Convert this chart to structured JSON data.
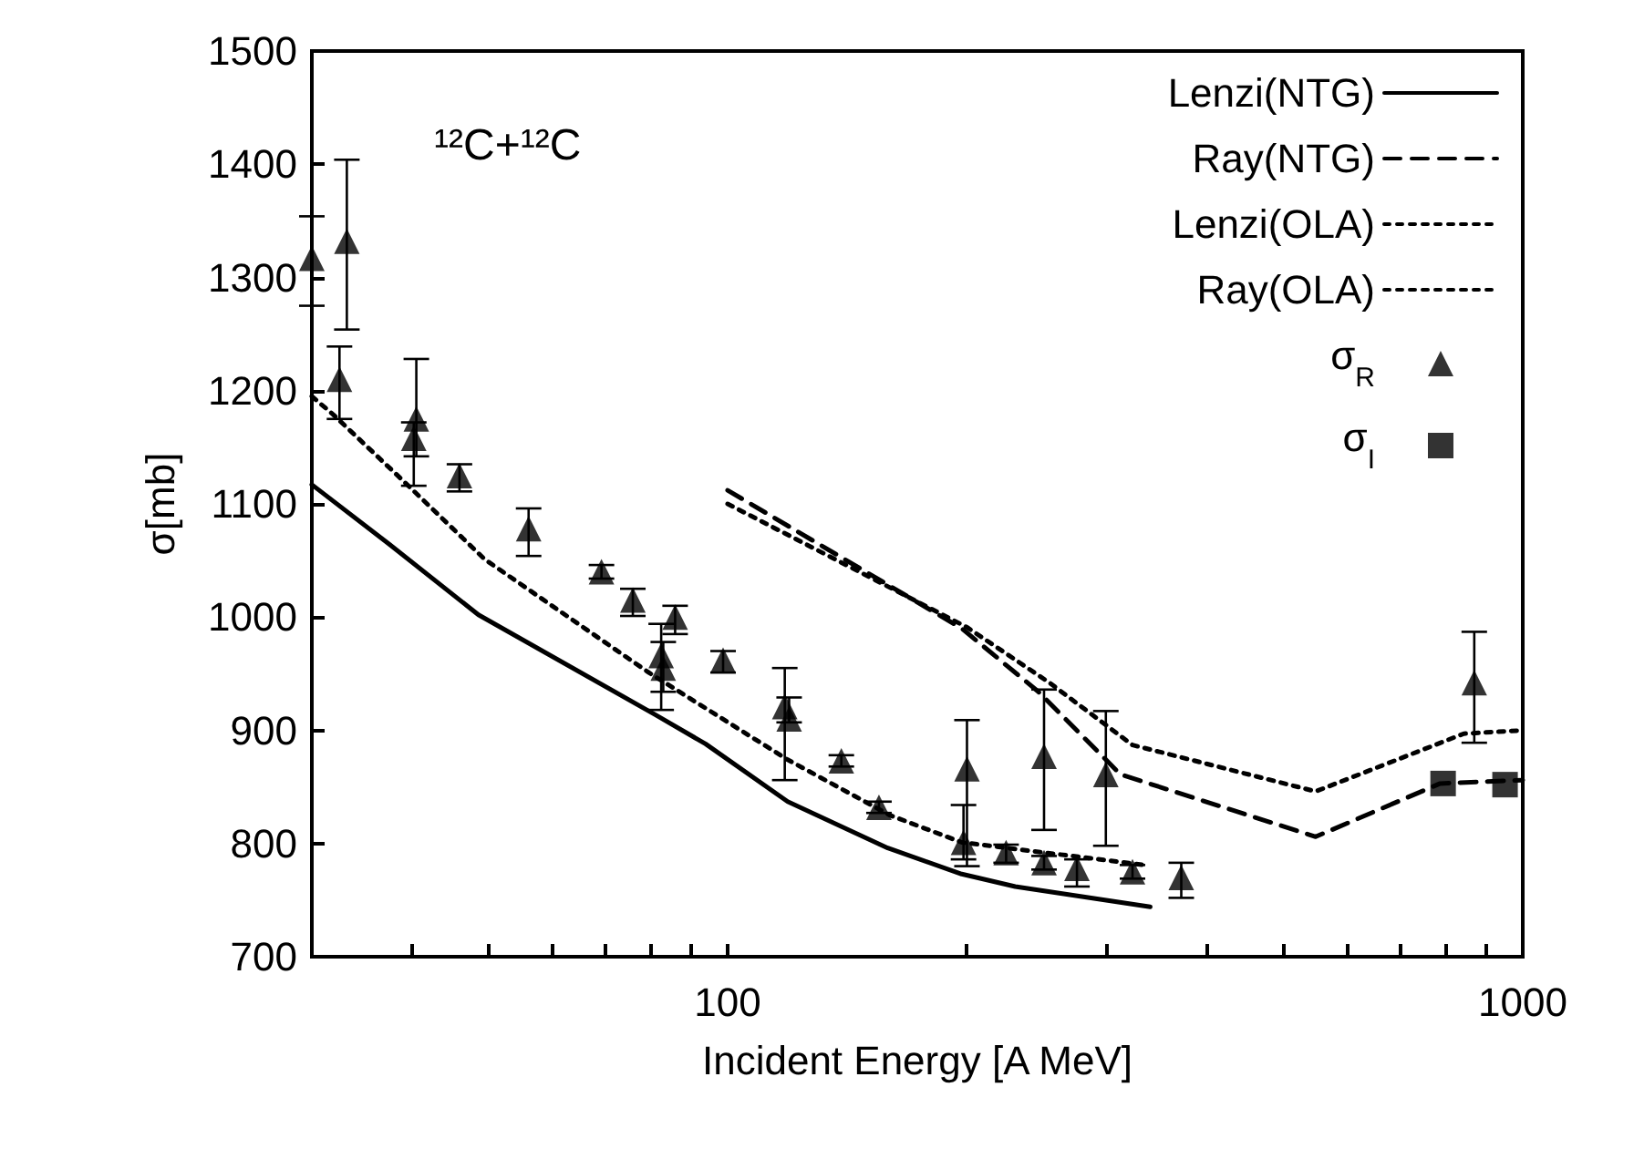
{
  "chart_data": {
    "type": "line",
    "xlabel": "Incident Energy [A MeV]",
    "ylabel": "σ[mb]",
    "log": "x",
    "xlim": [
      30,
      1000
    ],
    "ylim": [
      700,
      1500
    ],
    "xticks": [
      {
        "value": 30,
        "label": null
      },
      {
        "value": 40,
        "label": null
      },
      {
        "value": 50,
        "label": null
      },
      {
        "value": 60,
        "label": null
      },
      {
        "value": 70,
        "label": null
      },
      {
        "value": 80,
        "label": null
      },
      {
        "value": 90,
        "label": null
      },
      100,
      {
        "value": 200,
        "label": null
      },
      {
        "value": 300,
        "label": null
      },
      {
        "value": 400,
        "label": null
      },
      {
        "value": 500,
        "label": null
      },
      {
        "value": 600,
        "label": null
      },
      {
        "value": 700,
        "label": null
      },
      {
        "value": 800,
        "label": null
      },
      {
        "value": 900,
        "label": null
      },
      1000
    ],
    "yticks": [
      700,
      800,
      900,
      1000,
      1100,
      1200,
      1300,
      1400,
      1500
    ],
    "grid": false,
    "legend": "top right",
    "annotations": [
      "¹²C+¹²C"
    ],
    "series": [
      {
        "name": "Lenzi(NTG)",
        "color": "#000000",
        "line_style": "solid",
        "marker": "none",
        "x": [
          30,
          37.6,
          48.6,
          81,
          93.8,
          119,
          159,
          197,
          230,
          340
        ],
        "values": [
          1117,
          1064,
          1002,
          914,
          888,
          837,
          796,
          773,
          762,
          744
        ]
      },
      {
        "name": "Ray(NTG)",
        "color": "#000000",
        "line_style": "dashed",
        "marker": "none",
        "x": [
          100,
          197,
          246,
          312,
          549,
          787,
          1000
        ],
        "values": [
          1112,
          990,
          934,
          861,
          806,
          853,
          856
        ]
      },
      {
        "name": "Lenzi(OLA)",
        "color": "#000000",
        "line_style": "dotted",
        "marker": "none",
        "x": [
          30,
          31.9,
          39,
          49.5,
          79.6,
          119,
          160,
          197,
          335
        ],
        "values": [
          1195,
          1179,
          1121,
          1051,
          951,
          874,
          825,
          801,
          781
        ]
      },
      {
        "name": "Ray(OLA)",
        "color": "#000000",
        "line_style": "dotted",
        "marker": "none",
        "x": [
          100,
          200,
          254,
          323,
          549,
          843,
          1000
        ],
        "values": [
          1100,
          991,
          942,
          887,
          846,
          897,
          900
        ]
      },
      {
        "name": "σ$_{R}$",
        "type": "scatter",
        "color": "#000000",
        "marker": "triangle",
        "x": [
          30,
          33.2,
          32.5,
          40.6,
          40.3,
          46,
          56.2,
          69.4,
          76,
          85.9,
          82.5,
          83,
          98.7,
          118,
          119.5,
          139,
          155,
          200,
          198,
          224,
          250,
          250,
          275,
          299,
          323,
          372,
          869
        ],
        "values": [
          1317,
          1332,
          1210,
          1175,
          1158,
          1125,
          1078,
          1040,
          1015,
          1000,
          966,
          955,
          962,
          921,
          910,
          873,
          832,
          866,
          801,
          792,
          877,
          783,
          778,
          861,
          775,
          770,
          942
        ],
        "errors": [
          [
            1275,
            1354
          ],
          [
            1254,
            1404
          ],
          [
            1175,
            1239
          ],
          [
            1142,
            1228
          ],
          [
            1116,
            1172
          ],
          [
            1111,
            1135
          ],
          [
            1054,
            1096
          ],
          [
            1034,
            1046
          ],
          [
            1001,
            1025
          ],
          [
            985,
            1010
          ],
          [
            918,
            994
          ],
          [
            934,
            978
          ],
          [
            951,
            970
          ],
          [
            856,
            955
          ],
          [
            907,
            929
          ],
          [
            868,
            878
          ],
          [
            827,
            837
          ],
          [
            780,
            909
          ],
          [
            786,
            834
          ],
          [
            783,
            799
          ],
          [
            812,
            936
          ],
          [
            777,
            789
          ],
          [
            762,
            786
          ],
          [
            798,
            917
          ],
          [
            769,
            781
          ],
          [
            752,
            783
          ],
          [
            889,
            987
          ]
        ]
      },
      {
        "name": "σ$_{I}$",
        "type": "scatter",
        "color": "#000000",
        "marker": "square",
        "x": [
          794,
          950
        ],
        "values": [
          853,
          852
        ]
      }
    ]
  }
}
